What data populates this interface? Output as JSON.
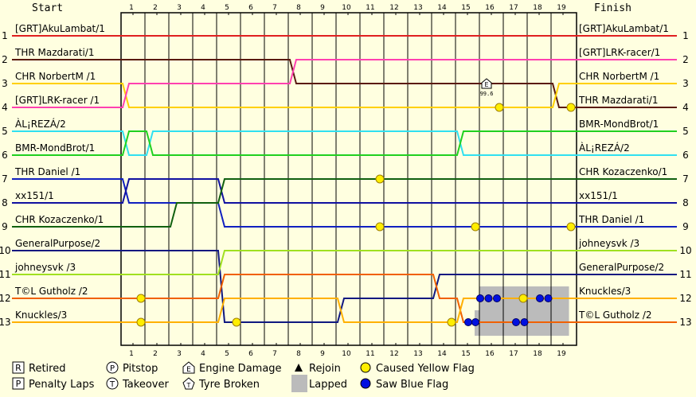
{
  "chart_data": {
    "type": "line",
    "header": {
      "start": "Start",
      "finish": "Finish"
    },
    "laps": [
      "1",
      "2",
      "3",
      "4",
      "5",
      "6",
      "7",
      "8",
      "9",
      "10",
      "11",
      "12",
      "13",
      "14",
      "15",
      "16",
      "17",
      "18",
      "19"
    ],
    "positions": [
      "1",
      "2",
      "3",
      "4",
      "5",
      "6",
      "7",
      "8",
      "9",
      "10",
      "11",
      "12",
      "13"
    ],
    "start_labels": [
      "[GRT]AkuLambat/1",
      "THR Mazdarati/1",
      "CHR NorbertM /1",
      "[GRT]LRK-racer /1",
      "ÀL¡REZÁ/2",
      "BMR-MondBrot/1",
      "THR Daniel /1",
      "xx151/1",
      "CHR Kozaczenko/1",
      "GeneralPurpose/2",
      "johneysvk /3",
      "T©L Gutholz /2",
      "Knuckles/3"
    ],
    "finish_labels": [
      "[GRT]AkuLambat/1",
      "[GRT]LRK-racer/1",
      "CHR NorbertM /1",
      "THR Mazdarati/1",
      "BMR-MondBrot/1",
      "ÀL¡REZÁ/2",
      "CHR Kozaczenko/1",
      "xx151/1",
      "THR Daniel /1",
      "johneysvk /3",
      "GeneralPurpose/2",
      "Knuckles/3",
      "T©L Gutholz /2"
    ],
    "series": [
      {
        "name": "[GRT]AkuLambat/1",
        "color": "#e02020",
        "positions": [
          1,
          1,
          1,
          1,
          1,
          1,
          1,
          1,
          1,
          1,
          1,
          1,
          1,
          1,
          1,
          1,
          1,
          1,
          1,
          1
        ]
      },
      {
        "name": "THR Mazdarati/1",
        "color": "#5a1a10",
        "positions": [
          2,
          2,
          2,
          2,
          2,
          2,
          2,
          2,
          3,
          3,
          3,
          3,
          3,
          3,
          3,
          3,
          3,
          3,
          3,
          4
        ]
      },
      {
        "name": "CHR NorbertM /1",
        "color": "#ffd000",
        "positions": [
          3,
          4,
          4,
          4,
          4,
          4,
          4,
          4,
          4,
          4,
          4,
          4,
          4,
          4,
          4,
          4,
          4,
          4,
          4,
          3
        ]
      },
      {
        "name": "[GRT]LRK-racer /1",
        "color": "#ff40b0",
        "positions": [
          4,
          3,
          3,
          3,
          3,
          3,
          3,
          3,
          2,
          2,
          2,
          2,
          2,
          2,
          2,
          2,
          2,
          2,
          2,
          2
        ]
      },
      {
        "name": "ÀL¡REZÁ/2",
        "color": "#30e0f0",
        "positions": [
          5,
          6,
          5,
          5,
          5,
          5,
          5,
          5,
          5,
          5,
          5,
          5,
          5,
          5,
          5,
          6,
          6,
          6,
          6,
          6
        ]
      },
      {
        "name": "BMR-MondBrot/1",
        "color": "#20d020",
        "positions": [
          6,
          5,
          6,
          6,
          6,
          6,
          6,
          6,
          6,
          6,
          6,
          6,
          6,
          6,
          6,
          5,
          5,
          5,
          5,
          5
        ]
      },
      {
        "name": "THR Daniel /1",
        "color": "#1020c0",
        "positions": [
          7,
          8,
          8,
          8,
          8,
          9,
          9,
          9,
          9,
          9,
          9,
          9,
          9,
          9,
          9,
          9,
          9,
          9,
          9,
          9
        ]
      },
      {
        "name": "xx151/1",
        "color": "#1010a0",
        "positions": [
          8,
          7,
          7,
          7,
          7,
          8,
          8,
          8,
          8,
          8,
          8,
          8,
          8,
          8,
          8,
          8,
          8,
          8,
          8,
          8
        ]
      },
      {
        "name": "CHR Kozaczenko/1",
        "color": "#106010",
        "positions": [
          9,
          9,
          9,
          8,
          8,
          7,
          7,
          7,
          7,
          7,
          7,
          7,
          7,
          7,
          7,
          7,
          7,
          7,
          7,
          7
        ]
      },
      {
        "name": "GeneralPurpose/2",
        "color": "#101880",
        "positions": [
          10,
          10,
          10,
          10,
          10,
          13,
          13,
          13,
          13,
          13,
          12,
          12,
          12,
          12,
          11,
          11,
          11,
          11,
          11,
          11
        ]
      },
      {
        "name": "johneysvk /3",
        "color": "#a0e020",
        "positions": [
          11,
          11,
          11,
          11,
          11,
          10,
          10,
          10,
          10,
          10,
          10,
          10,
          10,
          10,
          10,
          10,
          10,
          10,
          10,
          10
        ]
      },
      {
        "name": "T©L Gutholz /2",
        "color": "#f06000",
        "positions": [
          12,
          12,
          12,
          12,
          12,
          11,
          11,
          11,
          11,
          11,
          11,
          11,
          11,
          11,
          12,
          13,
          13,
          13,
          13,
          13
        ]
      },
      {
        "name": "Knuckles/3",
        "color": "#ffb000",
        "positions": [
          13,
          13,
          13,
          13,
          13,
          12,
          12,
          12,
          12,
          12,
          13,
          13,
          13,
          13,
          13,
          12,
          12,
          12,
          12,
          12
        ]
      }
    ],
    "yellow_flags": [
      {
        "lap": 1,
        "pos": 12
      },
      {
        "lap": 1,
        "pos": 13
      },
      {
        "lap": 5,
        "pos": 13
      },
      {
        "lap": 11,
        "pos": 7
      },
      {
        "lap": 11,
        "pos": 9
      },
      {
        "lap": 14,
        "pos": 13
      },
      {
        "lap": 15,
        "pos": 9
      },
      {
        "lap": 16,
        "pos": 4
      },
      {
        "lap": 17,
        "pos": 12
      },
      {
        "lap": 19,
        "pos": 4
      },
      {
        "lap": 19,
        "pos": 9
      }
    ],
    "blue_flags": [
      {
        "lap": 14.7,
        "pos": 13
      },
      {
        "lap": 15,
        "pos": 13
      },
      {
        "lap": 15.2,
        "pos": 12
      },
      {
        "lap": 15.55,
        "pos": 12
      },
      {
        "lap": 15.9,
        "pos": 12
      },
      {
        "lap": 16.7,
        "pos": 13
      },
      {
        "lap": 17.05,
        "pos": 13
      },
      {
        "lap": 17.7,
        "pos": 12
      },
      {
        "lap": 18.05,
        "pos": 12
      }
    ],
    "lapped_blocks": [
      {
        "from": 14.8,
        "to": 15.0,
        "pos_top": 13,
        "pos_bottom": 13
      },
      {
        "from": 15.0,
        "to": 18.75,
        "pos_top": 12,
        "pos_bottom": 13
      }
    ],
    "engine_damage": {
      "lap": 15.8,
      "pos": 3,
      "value": "99.6"
    },
    "legend": [
      {
        "symbol": "R",
        "label": "Retired"
      },
      {
        "symbol": "P",
        "label": "Pitstop"
      },
      {
        "symbol": "E",
        "label": "Engine Damage"
      },
      {
        "symbol": "rejoin",
        "label": "Rejoin"
      },
      {
        "symbol": "yellow",
        "label": "Caused Yellow Flag"
      },
      {
        "symbol": "P",
        "label": "Penalty Laps"
      },
      {
        "symbol": "T",
        "label": "Takeover"
      },
      {
        "symbol": "tyre",
        "label": "Tyre Broken"
      },
      {
        "symbol": "lapped",
        "label": "Lapped"
      },
      {
        "symbol": "blue",
        "label": "Saw Blue Flag"
      }
    ],
    "colors": {
      "background": "#ffffe0",
      "grid": "#000000",
      "yellow_flag": "#ffee00",
      "blue_flag": "#0010e0",
      "lapped": "#bbbbbb"
    }
  }
}
